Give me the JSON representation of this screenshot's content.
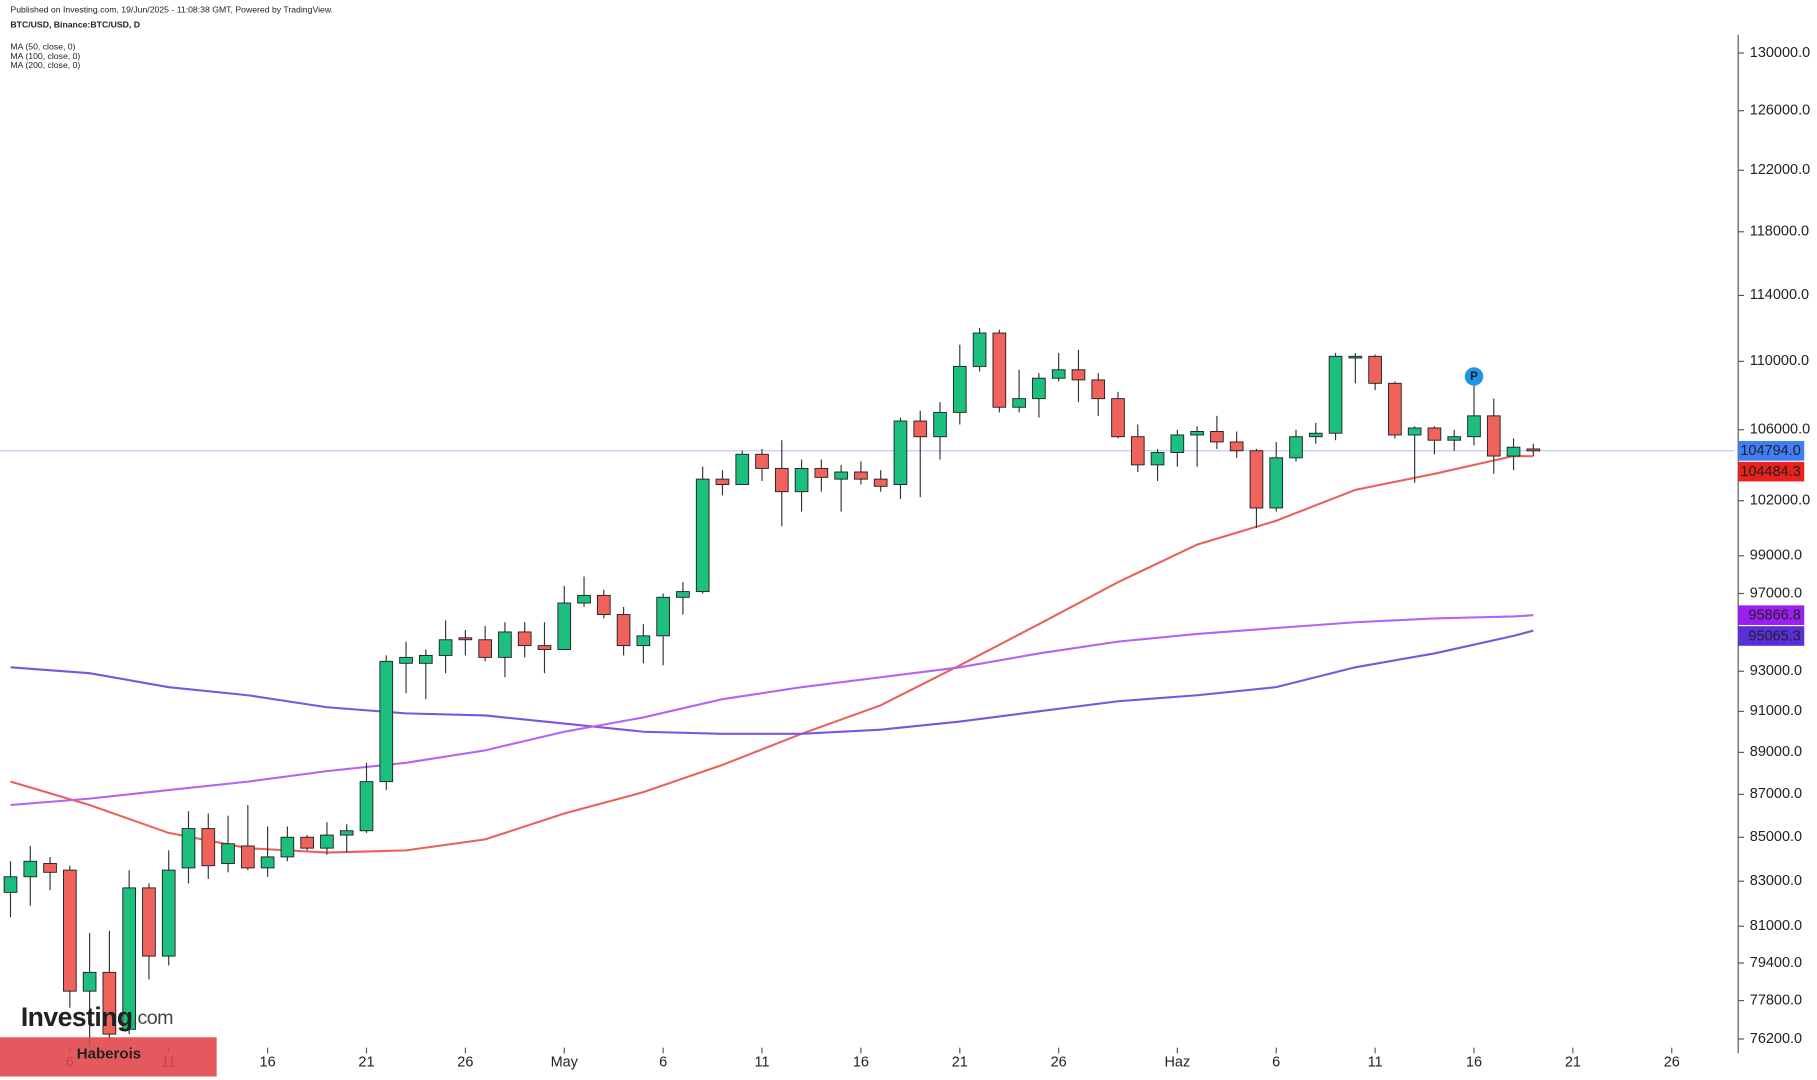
{
  "chart_data": {
    "type": "candlestick",
    "source": "Published on Investing.com, 19/Jun/2025 - 11:08:38 GMT, Powered by TradingView.",
    "title": "BTC/USD, Binance:BTC/USD, D",
    "log_scale": true,
    "up_color": "#1dbf7e",
    "down_color": "#f0625c",
    "x": [
      "04-03",
      "04-04",
      "04-05",
      "04-06",
      "04-07",
      "04-08",
      "04-09",
      "04-10",
      "04-11",
      "04-12",
      "04-13",
      "04-14",
      "04-15",
      "04-16",
      "04-17",
      "04-18",
      "04-19",
      "04-20",
      "04-21",
      "04-22",
      "04-23",
      "04-24",
      "04-25",
      "04-26",
      "04-27",
      "04-28",
      "04-29",
      "04-30",
      "05-01",
      "05-02",
      "05-03",
      "05-04",
      "05-05",
      "05-06",
      "05-07",
      "05-08",
      "05-09",
      "05-10",
      "05-11",
      "05-12",
      "05-13",
      "05-14",
      "05-15",
      "05-16",
      "05-17",
      "05-18",
      "05-19",
      "05-20",
      "05-21",
      "05-22",
      "05-23",
      "05-24",
      "05-25",
      "05-26",
      "05-27",
      "05-28",
      "05-29",
      "05-30",
      "05-31",
      "06-01",
      "06-02",
      "06-03",
      "06-04",
      "06-05",
      "06-06",
      "06-07",
      "06-08",
      "06-09",
      "06-10",
      "06-11",
      "06-12",
      "06-13",
      "06-14",
      "06-15",
      "06-16",
      "06-17",
      "06-18",
      "06-19"
    ],
    "open": [
      82500,
      83200,
      83800,
      83500,
      78200,
      79000,
      76600,
      82700,
      79700,
      83600,
      85400,
      83800,
      84600,
      83600,
      84100,
      85000,
      84500,
      85100,
      85300,
      87600,
      93400,
      93400,
      93800,
      94700,
      94600,
      93700,
      95000,
      94300,
      94100,
      96500,
      96900,
      95900,
      94300,
      94800,
      96800,
      97100,
      103200,
      102900,
      104600,
      103800,
      102500,
      103800,
      103200,
      103600,
      103200,
      102900,
      106500,
      105600,
      107000,
      109700,
      111700,
      107300,
      107800,
      109000,
      109500,
      108900,
      107800,
      105600,
      104000,
      104700,
      105700,
      105900,
      105300,
      104800,
      101600,
      104400,
      105600,
      105800,
      110200,
      110300,
      108700,
      105700,
      106100,
      105400,
      105600,
      106800,
      104500,
      104900
    ],
    "high": [
      83900,
      84600,
      84100,
      83700,
      80700,
      80800,
      83500,
      82900,
      84400,
      86200,
      86100,
      86000,
      86500,
      85500,
      85500,
      85100,
      85700,
      85600,
      88500,
      93800,
      94500,
      94100,
      95600,
      95100,
      95300,
      95500,
      95500,
      95500,
      97400,
      97900,
      97200,
      96300,
      95400,
      97000,
      97600,
      103900,
      103700,
      104800,
      104900,
      105400,
      104300,
      104300,
      104000,
      104200,
      103700,
      106700,
      107100,
      107600,
      111000,
      112000,
      111900,
      109500,
      109300,
      110500,
      110700,
      109300,
      108200,
      106300,
      104900,
      106000,
      106200,
      106800,
      105900,
      104900,
      105300,
      106000,
      106400,
      110500,
      110500,
      110400,
      108800,
      106200,
      106200,
      106000,
      108900,
      107800,
      105500,
      105200
    ],
    "low": [
      81400,
      81900,
      82600,
      77500,
      75900,
      76200,
      76400,
      78700,
      79300,
      82900,
      83100,
      83400,
      83500,
      83200,
      83900,
      84400,
      84200,
      84300,
      85200,
      87200,
      91900,
      91600,
      92900,
      93800,
      93500,
      92700,
      93700,
      92900,
      94100,
      96300,
      95700,
      93800,
      93400,
      93300,
      95900,
      97000,
      102300,
      102900,
      103100,
      100600,
      101400,
      102500,
      101400,
      102900,
      102500,
      102100,
      102200,
      104300,
      106300,
      109400,
      107000,
      107000,
      106700,
      108800,
      107600,
      106800,
      105500,
      103600,
      103100,
      103900,
      103900,
      104900,
      104400,
      100500,
      101400,
      104200,
      105200,
      105400,
      108700,
      108300,
      105500,
      103000,
      104600,
      104800,
      105100,
      103500,
      103700,
      104500
    ],
    "close": [
      83200,
      83900,
      83400,
      78200,
      79000,
      76400,
      82700,
      79700,
      83500,
      85400,
      83700,
      84700,
      83600,
      84100,
      85000,
      84500,
      85100,
      85300,
      87600,
      93500,
      93700,
      93800,
      94600,
      94600,
      93700,
      95000,
      94300,
      94100,
      96500,
      96900,
      95900,
      94300,
      94800,
      96800,
      97100,
      103200,
      102900,
      104600,
      103800,
      102500,
      103800,
      103300,
      103600,
      103200,
      102800,
      106500,
      105600,
      107000,
      109700,
      111700,
      107300,
      107800,
      109000,
      109500,
      108900,
      107800,
      105600,
      104000,
      104700,
      105700,
      105900,
      105300,
      104800,
      101600,
      104400,
      105600,
      105800,
      110300,
      110300,
      108700,
      105700,
      106100,
      105400,
      105600,
      106800,
      104500,
      105000,
      104794
    ],
    "lines": [
      {
        "name": "MA (50, close, 0)",
        "color": "#e8625a",
        "x": [
          "04-03",
          "04-07",
          "04-11",
          "04-15",
          "04-19",
          "04-23",
          "04-27",
          "05-01",
          "05-05",
          "05-09",
          "05-13",
          "05-17",
          "05-21",
          "05-25",
          "05-29",
          "06-02",
          "06-06",
          "06-10",
          "06-14",
          "06-18",
          "06-19"
        ],
        "values": [
          87600,
          86500,
          85200,
          84500,
          84300,
          84400,
          84900,
          86100,
          87100,
          88400,
          89900,
          91300,
          93300,
          95400,
          97600,
          99600,
          100900,
          102600,
          103500,
          104500,
          104484.3
        ]
      },
      {
        "name": "MA (100, close, 0)",
        "color": "#7b55e0",
        "x": [
          "04-03",
          "04-07",
          "04-11",
          "04-15",
          "04-19",
          "04-23",
          "04-27",
          "05-01",
          "05-05",
          "05-09",
          "05-13",
          "05-17",
          "05-21",
          "05-25",
          "05-29",
          "06-02",
          "06-06",
          "06-10",
          "06-14",
          "06-18",
          "06-19"
        ],
        "values": [
          93200,
          92900,
          92200,
          91800,
          91200,
          90900,
          90800,
          90400,
          90000,
          89900,
          89900,
          90100,
          90500,
          91000,
          91500,
          91800,
          92200,
          93200,
          93900,
          94800,
          95065.3
        ]
      },
      {
        "name": "MA (200, close, 0)",
        "color": "#b463f2",
        "x": [
          "04-03",
          "04-07",
          "04-11",
          "04-15",
          "04-19",
          "04-23",
          "04-27",
          "05-01",
          "05-05",
          "05-09",
          "05-13",
          "05-17",
          "05-21",
          "05-25",
          "05-29",
          "06-02",
          "06-06",
          "06-10",
          "06-14",
          "06-18",
          "06-19"
        ],
        "values": [
          86500,
          86800,
          87200,
          87600,
          88100,
          88500,
          89100,
          90000,
          90700,
          91600,
          92200,
          92700,
          93200,
          93900,
          94500,
          94900,
          95200,
          95500,
          95700,
          95800,
          95866.8
        ]
      }
    ],
    "price_tags": [
      {
        "value": 104794,
        "label": "104794.0",
        "color": "#3f7ef5"
      },
      {
        "value": 104484.3,
        "label": "104484.3",
        "color": "#e8231c"
      },
      {
        "value": 95866.8,
        "label": "95866.8",
        "color": "#9a1ff0"
      },
      {
        "value": 95065.3,
        "label": "95065.3",
        "color": "#5a2fd8"
      }
    ],
    "markers": [
      {
        "x": "06-16",
        "value": 109100,
        "label": "P",
        "color": "#1e96e8"
      }
    ],
    "xlim": [
      "04-02",
      "07-01"
    ],
    "xticks": [
      {
        "value": "04-06",
        "label": "6"
      },
      {
        "value": "04-11",
        "label": "11"
      },
      {
        "value": "04-16",
        "label": "16"
      },
      {
        "value": "04-21",
        "label": "21"
      },
      {
        "value": "04-26",
        "label": "26"
      },
      {
        "value": "05-01",
        "label": "May"
      },
      {
        "value": "05-06",
        "label": "6"
      },
      {
        "value": "05-11",
        "label": "11"
      },
      {
        "value": "05-16",
        "label": "16"
      },
      {
        "value": "05-21",
        "label": "21"
      },
      {
        "value": "05-26",
        "label": "26"
      },
      {
        "value": "06-01",
        "label": "Haz"
      },
      {
        "value": "06-06",
        "label": "6"
      },
      {
        "value": "06-11",
        "label": "11"
      },
      {
        "value": "06-16",
        "label": "16"
      },
      {
        "value": "06-21",
        "label": "21"
      },
      {
        "value": "06-26",
        "label": "26"
      }
    ],
    "ylim": [
      75700,
      131300
    ],
    "yticks": [
      {
        "value": 130000,
        "label": "130000.0"
      },
      {
        "value": 126000,
        "label": "126000.0"
      },
      {
        "value": 122000,
        "label": "122000.0"
      },
      {
        "value": 118000,
        "label": "118000.0"
      },
      {
        "value": 114000,
        "label": "114000.0"
      },
      {
        "value": 110000,
        "label": "110000.0"
      },
      {
        "value": 106000,
        "label": "106000.0"
      },
      {
        "value": 102000,
        "label": "102000.0"
      },
      {
        "value": 99000,
        "label": "99000.0"
      },
      {
        "value": 97000,
        "label": "97000.0"
      },
      {
        "value": 93000,
        "label": "93000.0"
      },
      {
        "value": 91000,
        "label": "91000.0"
      },
      {
        "value": 89000,
        "label": "89000.0"
      },
      {
        "value": 87000,
        "label": "87000.0"
      },
      {
        "value": 85000,
        "label": "85000.0"
      },
      {
        "value": 83000,
        "label": "83000.0"
      },
      {
        "value": 81000,
        "label": "81000.0"
      },
      {
        "value": 79400,
        "label": "79400.0"
      },
      {
        "value": 77800,
        "label": "77800.0"
      },
      {
        "value": 76200,
        "label": "76200.0"
      }
    ],
    "grid": false,
    "brand": "Investing",
    "brand_suffix": ".com",
    "badge": "Haberois"
  }
}
